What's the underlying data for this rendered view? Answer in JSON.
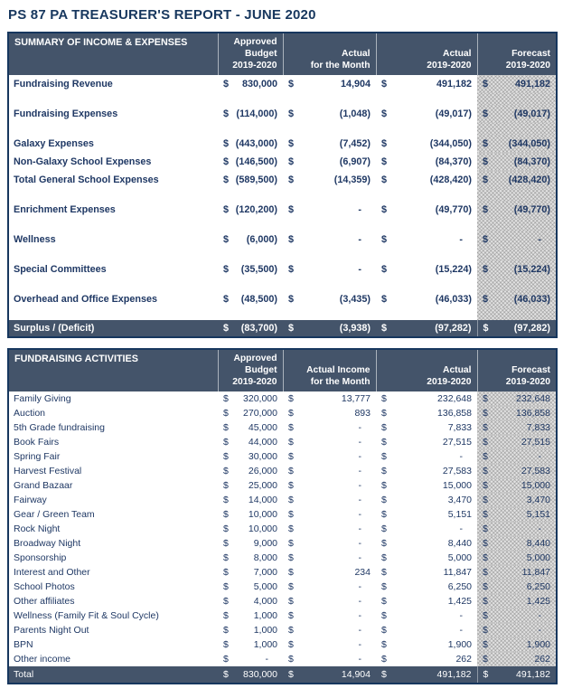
{
  "page_title": "PS 87 PA TREASURER'S REPORT - JUNE 2020",
  "currency_symbol": "$",
  "tables": [
    {
      "title": "SUMMARY OF INCOME & EXPENSES",
      "headers": [
        [
          "Approved",
          "Budget",
          "2019-2020"
        ],
        [
          "Actual",
          "for the Month"
        ],
        [
          "Actual",
          "2019-2020"
        ],
        [
          "Forecast",
          "2019-2020"
        ]
      ],
      "rows": [
        {
          "label": "Fundraising Revenue",
          "values": [
            "830,000",
            "14,904",
            "491,182",
            "491,182"
          ],
          "spacer_after": true
        },
        {
          "label": "Fundraising Expenses",
          "values": [
            "(114,000)",
            "(1,048)",
            "(49,017)",
            "(49,017)"
          ],
          "spacer_after": true
        },
        {
          "label": "Galaxy Expenses",
          "values": [
            "(443,000)",
            "(7,452)",
            "(344,050)",
            "(344,050)"
          ],
          "spacer_after": false
        },
        {
          "label": "Non-Galaxy School Expenses",
          "values": [
            "(146,500)",
            "(6,907)",
            "(84,370)",
            "(84,370)"
          ],
          "spacer_after": false
        },
        {
          "label": "Total General School Expenses",
          "values": [
            "(589,500)",
            "(14,359)",
            "(428,420)",
            "(428,420)"
          ],
          "spacer_after": true
        },
        {
          "label": "Enrichment Expenses",
          "values": [
            "(120,200)",
            "-",
            "(49,770)",
            "(49,770)"
          ],
          "spacer_after": true
        },
        {
          "label": "Wellness",
          "values": [
            "(6,000)",
            "-",
            "-",
            "-"
          ],
          "spacer_after": true
        },
        {
          "label": "Special Committees",
          "values": [
            "(35,500)",
            "-",
            "(15,224)",
            "(15,224)"
          ],
          "spacer_after": true
        },
        {
          "label": "Overhead and Office Expenses",
          "values": [
            "(48,500)",
            "(3,435)",
            "(46,033)",
            "(46,033)"
          ],
          "spacer_after": true
        }
      ],
      "footer": {
        "label": "Surplus / (Deficit)",
        "values": [
          "(83,700)",
          "(3,938)",
          "(97,282)",
          "(97,282)"
        ]
      }
    },
    {
      "title": "FUNDRAISING ACTIVITIES",
      "headers": [
        [
          "Approved",
          "Budget",
          "2019-2020"
        ],
        [
          "Actual Income",
          "for the Month"
        ],
        [
          "Actual",
          "2019-2020"
        ],
        [
          "Forecast",
          "2019-2020"
        ]
      ],
      "rows": [
        {
          "label": "Family Giving",
          "values": [
            "320,000",
            "13,777",
            "232,648",
            "232,648"
          ],
          "spacer_after": false
        },
        {
          "label": "Auction",
          "values": [
            "270,000",
            "893",
            "136,858",
            "136,858"
          ],
          "spacer_after": false
        },
        {
          "label": "5th Grade fundraising",
          "values": [
            "45,000",
            "-",
            "7,833",
            "7,833"
          ],
          "spacer_after": false
        },
        {
          "label": "Book Fairs",
          "values": [
            "44,000",
            "-",
            "27,515",
            "27,515"
          ],
          "spacer_after": false
        },
        {
          "label": "Spring Fair",
          "values": [
            "30,000",
            "-",
            "-",
            "-"
          ],
          "spacer_after": false
        },
        {
          "label": "Harvest Festival",
          "values": [
            "26,000",
            "-",
            "27,583",
            "27,583"
          ],
          "spacer_after": false
        },
        {
          "label": "Grand Bazaar",
          "values": [
            "25,000",
            "-",
            "15,000",
            "15,000"
          ],
          "spacer_after": false
        },
        {
          "label": "Fairway",
          "values": [
            "14,000",
            "-",
            "3,470",
            "3,470"
          ],
          "spacer_after": false
        },
        {
          "label": "Gear / Green Team",
          "values": [
            "10,000",
            "-",
            "5,151",
            "5,151"
          ],
          "spacer_after": false
        },
        {
          "label": "Rock Night",
          "values": [
            "10,000",
            "-",
            "-",
            "-"
          ],
          "spacer_after": false
        },
        {
          "label": "Broadway Night",
          "values": [
            "9,000",
            "-",
            "8,440",
            "8,440"
          ],
          "spacer_after": false
        },
        {
          "label": "Sponsorship",
          "values": [
            "8,000",
            "-",
            "5,000",
            "5,000"
          ],
          "spacer_after": false
        },
        {
          "label": "Interest and Other",
          "values": [
            "7,000",
            "234",
            "11,847",
            "11,847"
          ],
          "spacer_after": false
        },
        {
          "label": "School Photos",
          "values": [
            "5,000",
            "-",
            "6,250",
            "6,250"
          ],
          "spacer_after": false
        },
        {
          "label": "Other affiliates",
          "values": [
            "4,000",
            "-",
            "1,425",
            "1,425"
          ],
          "spacer_after": false
        },
        {
          "label": "Wellness (Family Fit & Soul Cycle)",
          "values": [
            "1,000",
            "-",
            "-",
            "-"
          ],
          "spacer_after": false
        },
        {
          "label": "Parents Night Out",
          "values": [
            "1,000",
            "-",
            "-",
            "-"
          ],
          "spacer_after": false
        },
        {
          "label": "BPN",
          "values": [
            "1,000",
            "-",
            "1,900",
            "1,900"
          ],
          "spacer_after": false
        },
        {
          "label": "Other income",
          "values": [
            "-",
            "-",
            "262",
            "262"
          ],
          "spacer_after": false
        }
      ],
      "footer": {
        "label": "Total",
        "values": [
          "830,000",
          "14,904",
          "491,182",
          "491,182"
        ]
      }
    }
  ]
}
